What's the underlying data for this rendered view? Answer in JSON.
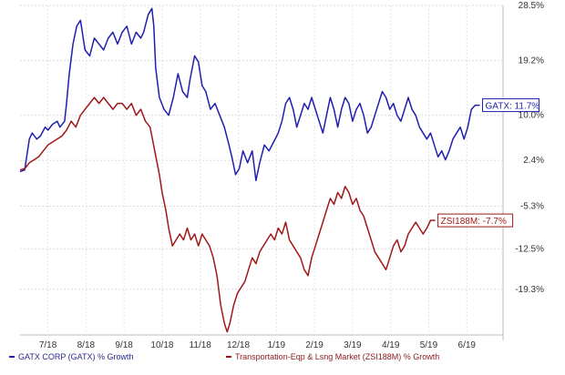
{
  "chart_data": {
    "type": "line",
    "title": "",
    "xlabel": "",
    "ylabel": "",
    "x_ticks": [
      "7/18",
      "8/18",
      "9/18",
      "10/18",
      "11/18",
      "12/18",
      "1/19",
      "2/19",
      "3/19",
      "4/19",
      "5/19",
      "6/19"
    ],
    "y_ticks": [
      "28.5%",
      "19.2%",
      "10.0%",
      "2.4%",
      "-5.3%",
      "-12.5%",
      "-19.3%"
    ],
    "y_tick_values": [
      28.5,
      19.2,
      10.0,
      2.4,
      -5.3,
      -12.5,
      -19.3
    ],
    "ylim": [
      -27.0,
      28.5
    ],
    "grid": true,
    "legend_position": "bottom-left",
    "series": [
      {
        "name": "GATX CORP (GATX) % Growth",
        "color": "#1f1fae",
        "callout": "GATX: 11.7%",
        "last_value": 11.7,
        "points": [
          [
            0.0,
            0.5
          ],
          [
            0.5,
            0.8
          ],
          [
            1,
            6
          ],
          [
            1.3,
            7
          ],
          [
            1.8,
            6
          ],
          [
            2.2,
            6.5
          ],
          [
            2.7,
            8
          ],
          [
            3,
            7.5
          ],
          [
            3.5,
            8.5
          ],
          [
            4,
            9
          ],
          [
            4.3,
            8
          ],
          [
            4.8,
            9
          ],
          [
            5,
            12
          ],
          [
            5.3,
            17
          ],
          [
            5.7,
            22
          ],
          [
            6.1,
            25
          ],
          [
            6.5,
            26
          ],
          [
            7,
            21
          ],
          [
            7.5,
            20
          ],
          [
            8,
            23
          ],
          [
            8.5,
            22
          ],
          [
            9,
            21
          ],
          [
            9.5,
            23
          ],
          [
            10,
            24
          ],
          [
            10.5,
            22
          ],
          [
            11,
            24
          ],
          [
            11.5,
            25
          ],
          [
            12,
            22
          ],
          [
            12.5,
            24
          ],
          [
            13,
            23
          ],
          [
            13.3,
            24
          ],
          [
            13.8,
            27
          ],
          [
            14.2,
            28
          ],
          [
            14.4,
            25
          ],
          [
            14.6,
            18
          ],
          [
            15,
            13
          ],
          [
            15.5,
            11
          ],
          [
            16,
            10
          ],
          [
            16.5,
            13
          ],
          [
            17,
            17
          ],
          [
            17.5,
            14
          ],
          [
            18,
            13
          ],
          [
            18.3,
            16
          ],
          [
            18.8,
            20
          ],
          [
            19.2,
            19
          ],
          [
            19.6,
            15
          ],
          [
            20,
            14
          ],
          [
            20.5,
            11
          ],
          [
            21,
            12
          ],
          [
            21.5,
            10
          ],
          [
            22,
            8
          ],
          [
            22.5,
            5
          ],
          [
            22.8,
            3
          ],
          [
            23.2,
            0
          ],
          [
            23.6,
            1
          ],
          [
            24,
            4
          ],
          [
            24.5,
            2
          ],
          [
            25,
            4
          ],
          [
            25.4,
            -1
          ],
          [
            25.8,
            2
          ],
          [
            26.3,
            5
          ],
          [
            26.8,
            4
          ],
          [
            27.3,
            5.5
          ],
          [
            27.8,
            7
          ],
          [
            28.2,
            9
          ],
          [
            28.6,
            12
          ],
          [
            29,
            13
          ],
          [
            29.4,
            11
          ],
          [
            29.8,
            8
          ],
          [
            30.2,
            10
          ],
          [
            30.6,
            12
          ],
          [
            31,
            11
          ],
          [
            31.4,
            13
          ],
          [
            31.8,
            11
          ],
          [
            32.2,
            9
          ],
          [
            32.6,
            7
          ],
          [
            33,
            10
          ],
          [
            33.4,
            13
          ],
          [
            33.8,
            11
          ],
          [
            34.2,
            8
          ],
          [
            34.6,
            11
          ],
          [
            35,
            13
          ],
          [
            35.4,
            12
          ],
          [
            35.8,
            9
          ],
          [
            36.2,
            11
          ],
          [
            36.6,
            12
          ],
          [
            37,
            10
          ],
          [
            37.4,
            7
          ],
          [
            37.8,
            8
          ],
          [
            38.2,
            10
          ],
          [
            38.6,
            12
          ],
          [
            39,
            14
          ],
          [
            39.4,
            13
          ],
          [
            39.8,
            11
          ],
          [
            40.2,
            12
          ],
          [
            40.6,
            10
          ],
          [
            41,
            9
          ],
          [
            41.4,
            11
          ],
          [
            41.8,
            13
          ],
          [
            42.2,
            11
          ],
          [
            42.6,
            10
          ],
          [
            43,
            8
          ],
          [
            43.4,
            7
          ],
          [
            43.8,
            6
          ],
          [
            44.2,
            7
          ],
          [
            44.6,
            5
          ],
          [
            45,
            3
          ],
          [
            45.4,
            4
          ],
          [
            45.8,
            2.5
          ],
          [
            46.2,
            4
          ],
          [
            46.6,
            6
          ],
          [
            47,
            7
          ],
          [
            47.4,
            8
          ],
          [
            47.8,
            6
          ],
          [
            48.2,
            8
          ],
          [
            48.6,
            11
          ],
          [
            49,
            11.7
          ],
          [
            49.5,
            11.7
          ]
        ]
      },
      {
        "name": "Transportation-Eqp & Lsng Market (ZSI188M) % Growth",
        "color": "#a01818",
        "callout": "ZSI188M: -7.7%",
        "last_value": -7.7,
        "points": [
          [
            0.0,
            0.8
          ],
          [
            0.5,
            1
          ],
          [
            1,
            2
          ],
          [
            1.5,
            2.5
          ],
          [
            2,
            3
          ],
          [
            2.5,
            4
          ],
          [
            3,
            5
          ],
          [
            3.5,
            5.5
          ],
          [
            4,
            6
          ],
          [
            4.5,
            6.5
          ],
          [
            5,
            7.5
          ],
          [
            5.5,
            9
          ],
          [
            6,
            8
          ],
          [
            6.5,
            10
          ],
          [
            7,
            11
          ],
          [
            7.5,
            12
          ],
          [
            8,
            13
          ],
          [
            8.5,
            12
          ],
          [
            9,
            13
          ],
          [
            9.5,
            12
          ],
          [
            10,
            11
          ],
          [
            10.5,
            12
          ],
          [
            11,
            12
          ],
          [
            11.5,
            11
          ],
          [
            12,
            12
          ],
          [
            12.5,
            10
          ],
          [
            13,
            11
          ],
          [
            13.5,
            9
          ],
          [
            14,
            8
          ],
          [
            14.5,
            4
          ],
          [
            15,
            0
          ],
          [
            15.3,
            -3
          ],
          [
            15.7,
            -6
          ],
          [
            16,
            -9
          ],
          [
            16.4,
            -12
          ],
          [
            16.8,
            -11
          ],
          [
            17.2,
            -10
          ],
          [
            17.6,
            -11
          ],
          [
            18,
            -9
          ],
          [
            18.4,
            -11
          ],
          [
            18.8,
            -10
          ],
          [
            19.2,
            -12
          ],
          [
            19.6,
            -10
          ],
          [
            20,
            -11
          ],
          [
            20.4,
            -12
          ],
          [
            20.8,
            -14
          ],
          [
            21.2,
            -17
          ],
          [
            21.6,
            -22
          ],
          [
            22,
            -25
          ],
          [
            22.3,
            -26.5
          ],
          [
            22.6,
            -25
          ],
          [
            23,
            -22
          ],
          [
            23.4,
            -20
          ],
          [
            23.8,
            -19
          ],
          [
            24.2,
            -18
          ],
          [
            24.6,
            -16
          ],
          [
            25,
            -14
          ],
          [
            25.4,
            -15
          ],
          [
            25.8,
            -13
          ],
          [
            26.2,
            -12
          ],
          [
            26.6,
            -11
          ],
          [
            27,
            -10
          ],
          [
            27.4,
            -11
          ],
          [
            27.8,
            -9
          ],
          [
            28.2,
            -10
          ],
          [
            28.6,
            -8
          ],
          [
            29,
            -11
          ],
          [
            29.4,
            -12
          ],
          [
            29.8,
            -13
          ],
          [
            30.2,
            -14
          ],
          [
            30.6,
            -16
          ],
          [
            31,
            -17
          ],
          [
            31.4,
            -14
          ],
          [
            31.8,
            -12
          ],
          [
            32.2,
            -10
          ],
          [
            32.6,
            -8
          ],
          [
            33,
            -6
          ],
          [
            33.4,
            -4
          ],
          [
            33.8,
            -5
          ],
          [
            34.2,
            -3
          ],
          [
            34.6,
            -4
          ],
          [
            35,
            -2
          ],
          [
            35.4,
            -3
          ],
          [
            35.8,
            -5
          ],
          [
            36.2,
            -4
          ],
          [
            36.6,
            -6
          ],
          [
            37,
            -7
          ],
          [
            37.4,
            -9
          ],
          [
            37.8,
            -11
          ],
          [
            38.2,
            -13
          ],
          [
            38.6,
            -14
          ],
          [
            39,
            -15
          ],
          [
            39.4,
            -16
          ],
          [
            39.8,
            -14
          ],
          [
            40.2,
            -12
          ],
          [
            40.6,
            -11
          ],
          [
            41,
            -13
          ],
          [
            41.4,
            -12
          ],
          [
            41.8,
            -10
          ],
          [
            42.2,
            -9
          ],
          [
            42.6,
            -8
          ],
          [
            43,
            -9
          ],
          [
            43.4,
            -10
          ],
          [
            43.8,
            -9
          ],
          [
            44.2,
            -7.7
          ],
          [
            44.7,
            -7.7
          ]
        ]
      }
    ]
  }
}
